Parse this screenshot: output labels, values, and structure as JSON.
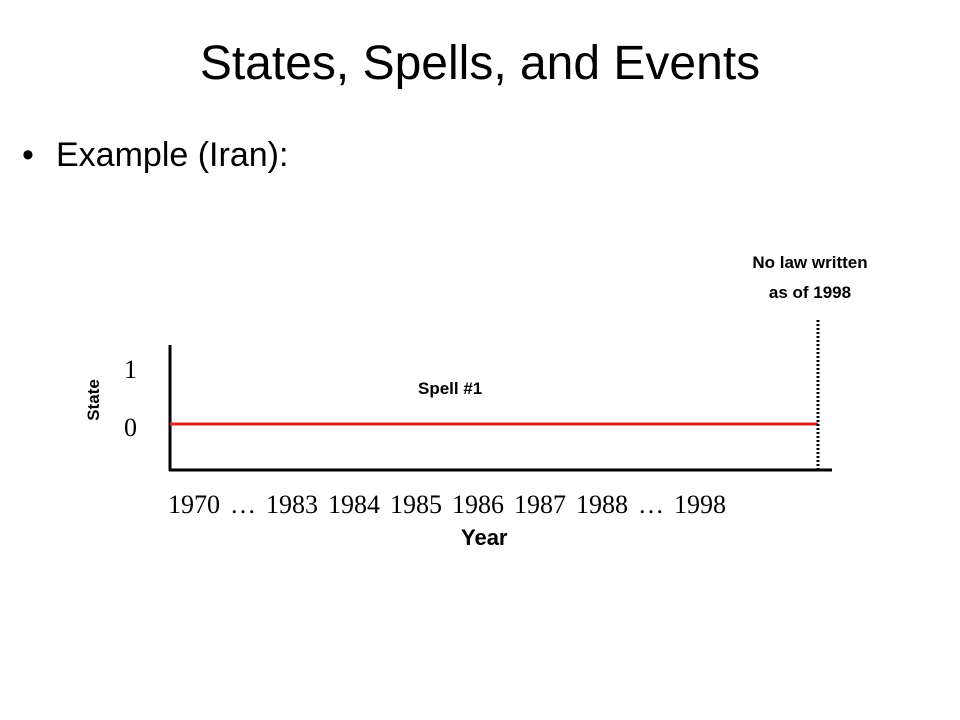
{
  "slide": {
    "title": "States, Spells, and Events",
    "bullet": "Example (Iran):"
  },
  "diagram": {
    "y_axis_label": "State",
    "y_ticks": [
      "1",
      "0"
    ],
    "x_axis_label": "Year",
    "x_ticks": [
      "1970",
      "…",
      "1983",
      "1984",
      "1985",
      "1986",
      "1987",
      "1988",
      "…",
      "1998"
    ],
    "spell_label": "Spell #1",
    "spell_state": 0,
    "spell_from": "1970",
    "spell_to": "1998",
    "end_annotation_line1": "No law written",
    "end_annotation_line2": "as of 1998",
    "spell_color": "#e02020",
    "axis_color": "#000000"
  }
}
